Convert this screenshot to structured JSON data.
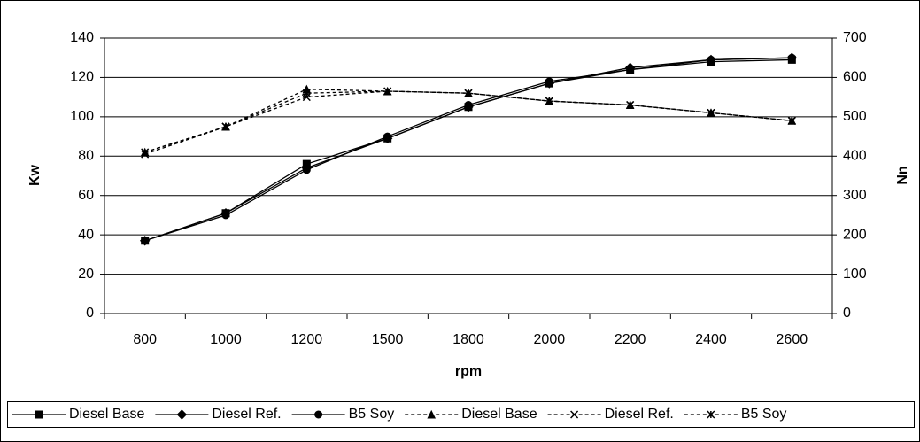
{
  "chart_data": {
    "type": "line",
    "x_label": "rpm",
    "y_label": "Kw",
    "y2_label": "Nn",
    "categories": [
      "800",
      "1000",
      "1200",
      "1500",
      "1800",
      "2000",
      "2200",
      "2400",
      "2600"
    ],
    "ylim": [
      0,
      140
    ],
    "yticks": [
      0,
      20,
      40,
      60,
      80,
      100,
      120,
      140
    ],
    "y2lim": [
      0,
      700
    ],
    "y2ticks": [
      0,
      100,
      200,
      300,
      400,
      500,
      600,
      700
    ],
    "grid": true,
    "legend": "bottom",
    "series": [
      {
        "name": "Diesel Base",
        "color": "#000000",
        "line_style": "solid",
        "marker": "square",
        "values": [
          37,
          51,
          76,
          89,
          105,
          117,
          124,
          128,
          129
        ]
      },
      {
        "name": "Diesel Ref.",
        "color": "#000000",
        "line_style": "solid",
        "marker": "diamond",
        "values": [
          37,
          51,
          74,
          89,
          105,
          117,
          125,
          129,
          130
        ]
      },
      {
        "name": "B5 Soy",
        "color": "#000000",
        "line_style": "solid",
        "marker": "circle",
        "values": [
          37,
          50,
          73,
          90,
          106,
          118,
          124,
          129,
          130
        ]
      },
      {
        "name": "Diesel Base",
        "color": "#000000",
        "line_style": "dashed",
        "marker": "triangle",
        "axis": "y2",
        "values": [
          410,
          475,
          570,
          565,
          560,
          540,
          530,
          510,
          490
        ]
      },
      {
        "name": "Diesel Ref.",
        "color": "#000000",
        "line_style": "dashed",
        "marker": "x",
        "axis": "y2",
        "values": [
          405,
          475,
          550,
          565,
          560,
          540,
          530,
          510,
          490
        ]
      },
      {
        "name": "B5 Soy",
        "color": "#000000",
        "line_style": "dashed",
        "marker": "star",
        "axis": "y2",
        "values": [
          410,
          475,
          560,
          565,
          560,
          540,
          530,
          510,
          490
        ]
      }
    ]
  }
}
